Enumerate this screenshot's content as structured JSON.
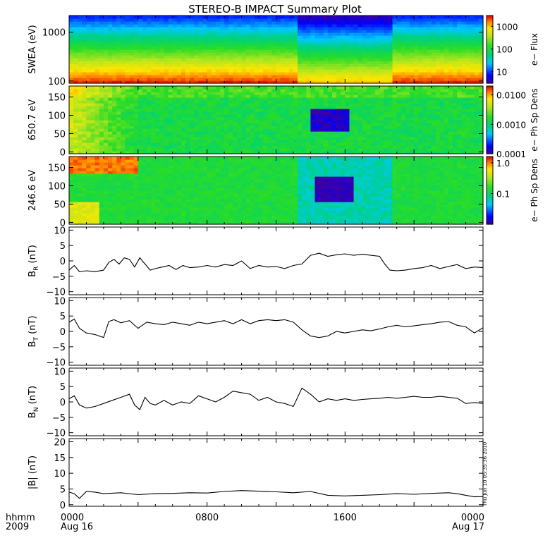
{
  "title": "STEREO-B IMPACT Summary Plot",
  "stamp": "Thu Jun 10 05:35:36 2010",
  "time_axis": {
    "label_top": "hhmm",
    "label_bottom": "2009",
    "ticks": [
      {
        "hour": 0,
        "top": "0000",
        "bottom": "Aug 16"
      },
      {
        "hour": 8,
        "top": "0800",
        "bottom": ""
      },
      {
        "hour": 16,
        "top": "1600",
        "bottom": ""
      },
      {
        "hour": 24,
        "top": "0000",
        "bottom": "Aug 17"
      }
    ],
    "range_hours": [
      0,
      24
    ]
  },
  "colors": {
    "line": "#000000",
    "frame": "#000000"
  },
  "chart_data": [
    {
      "type": "heatmap",
      "id": "swea",
      "ylabel": "SWEA (eV)",
      "yscale": "log",
      "ylim": [
        90,
        2200
      ],
      "yticks": [
        {
          "v": 100,
          "label": "100"
        },
        {
          "v": 1000,
          "label": "1000"
        }
      ],
      "colorbar": {
        "label": "e− Flux",
        "scale": "log",
        "range": [
          3,
          3000
        ],
        "ticks": [
          {
            "v": 10,
            "label": "10"
          },
          {
            "v": 100,
            "label": "100"
          },
          {
            "v": 1000,
            "label": "1000"
          }
        ]
      }
    },
    {
      "type": "heatmap",
      "id": "pad650",
      "ylabel": "650.7 eV",
      "yscale": "linear",
      "ylim": [
        -5,
        180
      ],
      "yticks": [
        {
          "v": 0,
          "label": "0"
        },
        {
          "v": 50,
          "label": "50"
        },
        {
          "v": 100,
          "label": "100"
        },
        {
          "v": 150,
          "label": "150"
        }
      ],
      "colorbar": {
        "label": "e− Ph Sp Dens",
        "scale": "log",
        "range": [
          0.0001,
          0.02
        ],
        "ticks": [
          {
            "v": 0.0001,
            "label": "0.0001"
          },
          {
            "v": 0.001,
            "label": "0.0010"
          },
          {
            "v": 0.01,
            "label": "0.0100"
          }
        ]
      }
    },
    {
      "type": "heatmap",
      "id": "pad246",
      "ylabel": "246.6 eV",
      "yscale": "linear",
      "ylim": [
        -5,
        180
      ],
      "yticks": [
        {
          "v": 0,
          "label": "0"
        },
        {
          "v": 50,
          "label": "50"
        },
        {
          "v": 100,
          "label": "100"
        },
        {
          "v": 150,
          "label": "150"
        }
      ],
      "colorbar": {
        "label": "e− Ph Sp Dens",
        "scale": "log",
        "range": [
          0.01,
          1.6
        ],
        "ticks": [
          {
            "v": 0.1,
            "label": "0.1"
          },
          {
            "v": 1.0,
            "label": "1.0"
          }
        ]
      }
    },
    {
      "type": "line",
      "id": "br",
      "ylabel": "B",
      "ylabel_sub": "R",
      "ylabel_unit": " (nT)",
      "ylim": [
        -11,
        11
      ],
      "yticks": [
        {
          "v": -10,
          "label": "−10"
        },
        {
          "v": -5,
          "label": "−5"
        },
        {
          "v": 0,
          "label": "0"
        },
        {
          "v": 5,
          "label": "5"
        },
        {
          "v": 10,
          "label": "10"
        }
      ],
      "x": [
        0,
        0.3,
        0.6,
        1,
        1.5,
        2,
        2.3,
        2.6,
        2.9,
        3.2,
        3.5,
        3.8,
        4.1,
        4.4,
        4.7,
        5,
        5.4,
        5.8,
        6.2,
        6.6,
        7,
        7.5,
        8,
        8.5,
        9,
        9.5,
        10,
        10.5,
        11,
        11.5,
        12,
        12.5,
        13,
        13.5,
        14,
        14.5,
        15,
        15.5,
        16,
        16.5,
        17,
        17.5,
        18,
        18.3,
        18.6,
        19,
        19.5,
        20,
        20.5,
        21,
        21.5,
        22,
        22.5,
        23,
        23.5,
        24
      ],
      "y": [
        -3,
        -1.5,
        -3.5,
        -3.2,
        -3.5,
        -3,
        -0.5,
        0.5,
        -1,
        1,
        0.5,
        -2,
        1,
        -1,
        -3,
        -2.5,
        -2,
        -1.5,
        -2.8,
        -1.5,
        -2.2,
        -2,
        -1.5,
        -2,
        -1.2,
        -1.5,
        0,
        -2.5,
        -1.5,
        -2,
        -1.8,
        -2.5,
        -1.5,
        -1,
        1.8,
        2.5,
        1.5,
        2,
        2.3,
        1.8,
        2.2,
        1.8,
        1.5,
        -1,
        -3,
        -3.2,
        -3,
        -2.5,
        -2.2,
        -1.5,
        -2.5,
        -1.8,
        -1.2,
        -2.5,
        -2,
        -2.2
      ]
    },
    {
      "type": "line",
      "id": "bt",
      "ylabel": "B",
      "ylabel_sub": "T",
      "ylabel_unit": " (nT)",
      "ylim": [
        -11,
        11
      ],
      "yticks": [
        {
          "v": -10,
          "label": "−10"
        },
        {
          "v": -5,
          "label": "−5"
        },
        {
          "v": 0,
          "label": "0"
        },
        {
          "v": 5,
          "label": "5"
        },
        {
          "v": 10,
          "label": "10"
        }
      ],
      "x": [
        0,
        0.3,
        0.6,
        1,
        1.5,
        2,
        2.3,
        2.6,
        3,
        3.5,
        4,
        4.5,
        5,
        5.5,
        6,
        6.5,
        7,
        7.5,
        8,
        8.5,
        9,
        9.5,
        10,
        10.5,
        11,
        11.5,
        12,
        12.5,
        13,
        13.5,
        14,
        14.5,
        15,
        15.5,
        16,
        16.5,
        17,
        17.5,
        18,
        18.5,
        19,
        19.5,
        20,
        20.5,
        21,
        21.5,
        22,
        22.5,
        23,
        23.5,
        24
      ],
      "y": [
        3,
        4,
        1,
        -0.5,
        -1,
        -2,
        3.2,
        3.8,
        2.8,
        3.5,
        1,
        3,
        2.5,
        2.2,
        3,
        2.5,
        2,
        3,
        2.5,
        3,
        3.5,
        2.5,
        3.8,
        2.5,
        3.5,
        3.8,
        3.5,
        3.8,
        3,
        0.5,
        -1.5,
        -2,
        -1.5,
        0,
        -0.5,
        0,
        0.5,
        0.2,
        0.8,
        1.5,
        2,
        1.5,
        1.8,
        2.2,
        2.5,
        3,
        3.2,
        2,
        1.5,
        -0.5,
        1.2
      ]
    },
    {
      "type": "line",
      "id": "bn",
      "ylabel": "B",
      "ylabel_sub": "N",
      "ylabel_unit": " (nT)",
      "ylim": [
        -11,
        11
      ],
      "yticks": [
        {
          "v": -10,
          "label": "−10"
        },
        {
          "v": -5,
          "label": "−5"
        },
        {
          "v": 0,
          "label": "0"
        },
        {
          "v": 5,
          "label": "5"
        },
        {
          "v": 10,
          "label": "10"
        }
      ],
      "x": [
        0,
        0.3,
        0.6,
        1,
        1.5,
        2,
        2.5,
        3,
        3.5,
        3.8,
        4.1,
        4.4,
        4.7,
        5,
        5.5,
        6,
        6.5,
        7,
        7.5,
        8,
        8.5,
        9,
        9.5,
        10,
        10.5,
        11,
        11.5,
        12,
        12.5,
        13,
        13.5,
        14,
        14.5,
        15,
        15.5,
        16,
        16.5,
        17,
        17.5,
        18,
        18.5,
        19,
        19.5,
        20,
        20.5,
        21,
        21.5,
        22,
        22.5,
        23,
        23.5,
        24
      ],
      "y": [
        1,
        2,
        -1,
        -2,
        -1.5,
        -0.5,
        0.5,
        1.5,
        2.5,
        -1,
        -2.5,
        1.5,
        -0.5,
        -1,
        0.5,
        -1,
        0,
        -0.5,
        2,
        1,
        0,
        1.5,
        3.5,
        3,
        2.5,
        0.5,
        1.5,
        0,
        -0.5,
        -1.5,
        4.5,
        2.5,
        0,
        1,
        0.5,
        1,
        0.5,
        0.8,
        1,
        1.2,
        1.5,
        1.2,
        1.5,
        1.8,
        1.5,
        1.5,
        1.8,
        1.5,
        1.2,
        -0.5,
        -0.2,
        -0.5
      ]
    },
    {
      "type": "line",
      "id": "bmag",
      "ylabel": "|B| (nT)",
      "ylim": [
        -0.5,
        21
      ],
      "yticks": [
        {
          "v": 0,
          "label": "0"
        },
        {
          "v": 5,
          "label": "5"
        },
        {
          "v": 10,
          "label": "10"
        },
        {
          "v": 15,
          "label": "15"
        },
        {
          "v": 20,
          "label": "20"
        }
      ],
      "x": [
        0,
        0.3,
        0.6,
        1,
        1.5,
        2,
        3,
        4,
        5,
        6,
        7,
        8,
        9,
        10,
        11,
        12,
        13,
        14,
        15,
        16,
        17,
        18,
        19,
        20,
        21,
        22,
        22.5,
        23,
        23.5,
        24
      ],
      "y": [
        4,
        3.5,
        2,
        4.2,
        4,
        3.5,
        3.8,
        3.2,
        3.5,
        3.6,
        3.8,
        3.7,
        4.2,
        4.5,
        4.3,
        4.1,
        3.8,
        4.2,
        3,
        2.8,
        3,
        3.2,
        3.5,
        3.3,
        3.6,
        3.8,
        3.5,
        3,
        2.5,
        2.6
      ]
    }
  ]
}
